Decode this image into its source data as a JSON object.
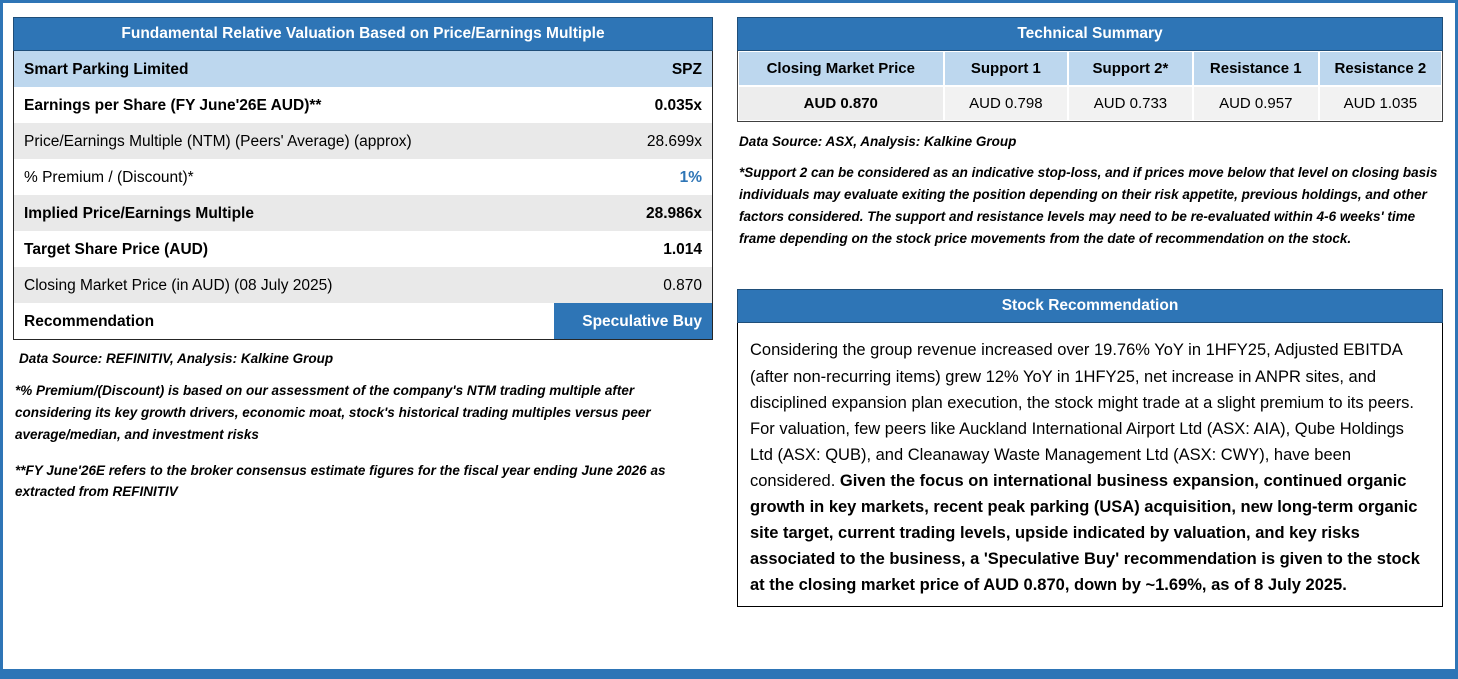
{
  "colors": {
    "header_blue": "#2E75B6",
    "light_blue_row": "#BDD7EE",
    "gray_row": "#E9E9E9",
    "accent_text": "#2E75B6",
    "frame_blue": "#2E75B6"
  },
  "valuation_panel": {
    "title": "Fundamental Relative Valuation Based on Price/Earnings Multiple",
    "rows": [
      {
        "label": "Smart Parking Limited",
        "value": "SPZ"
      },
      {
        "label": "Earnings per Share (FY June'26E AUD)**",
        "value": "0.035x"
      },
      {
        "label": "Price/Earnings Multiple (NTM)  (Peers' Average) (approx)",
        "value": "28.699x"
      },
      {
        "label": "% Premium / (Discount)*",
        "value": "1%"
      },
      {
        "label": "Implied Price/Earnings Multiple",
        "value": "28.986x"
      },
      {
        "label": "Target Share Price (AUD)",
        "value": "1.014"
      },
      {
        "label": "Closing Market Price (in AUD) (08 July 2025)",
        "value": "0.870"
      },
      {
        "label": "Recommendation",
        "value": "Speculative Buy"
      }
    ],
    "source": "Data Source: REFINITIV, Analysis: Kalkine Group",
    "footnote_premium": "*% Premium/(Discount) is based on our assessment of the company's NTM trading multiple after considering its key growth drivers, economic moat, stock's historical trading multiples versus peer average/median, and investment risks",
    "footnote_fy": "**FY June'26E refers to the broker consensus estimate figures for the fiscal year ending June 2026  as extracted from REFINITIV"
  },
  "technical_panel": {
    "title": "Technical Summary",
    "columns": [
      "Closing Market Price",
      "Support 1",
      "Support 2*",
      "Resistance 1",
      "Resistance 2"
    ],
    "values": [
      "AUD 0.870",
      "AUD 0.798",
      "AUD 0.733",
      "AUD 0.957",
      "AUD 1.035"
    ],
    "source": "Data Source: ASX, Analysis: Kalkine Group",
    "footnote": "*Support 2 can be considered as an indicative stop-loss, and if prices move below that level on closing basis individuals may evaluate exiting the position depending on their risk appetite, previous holdings, and other factors considered. The support and resistance levels may need to be re-evaluated within 4-6 weeks' time frame depending on the stock price movements from the date of recommendation on the stock."
  },
  "recommendation_panel": {
    "title": "Stock Recommendation",
    "body_regular": "Considering the group revenue increased over 19.76% YoY in 1HFY25, Adjusted EBITDA (after non-recurring items) grew 12% YoY in 1HFY25, net increase in ANPR sites, and disciplined expansion plan execution, the stock might trade at a slight premium to its peers. For valuation, few peers like Auckland International Airport Ltd (ASX: AIA), Qube Holdings Ltd (ASX: QUB), and Cleanaway Waste Management Ltd (ASX: CWY), have been considered. ",
    "body_bold": "Given the focus on international business expansion, continued organic growth in key markets, recent peak parking (USA) acquisition, new long-term organic site target, current trading levels, upside indicated by valuation, and key risks associated to the business, a 'Speculative Buy' recommendation is given to the stock at the closing market price of AUD 0.870, down by ~1.69%, as of 8 July 2025."
  }
}
